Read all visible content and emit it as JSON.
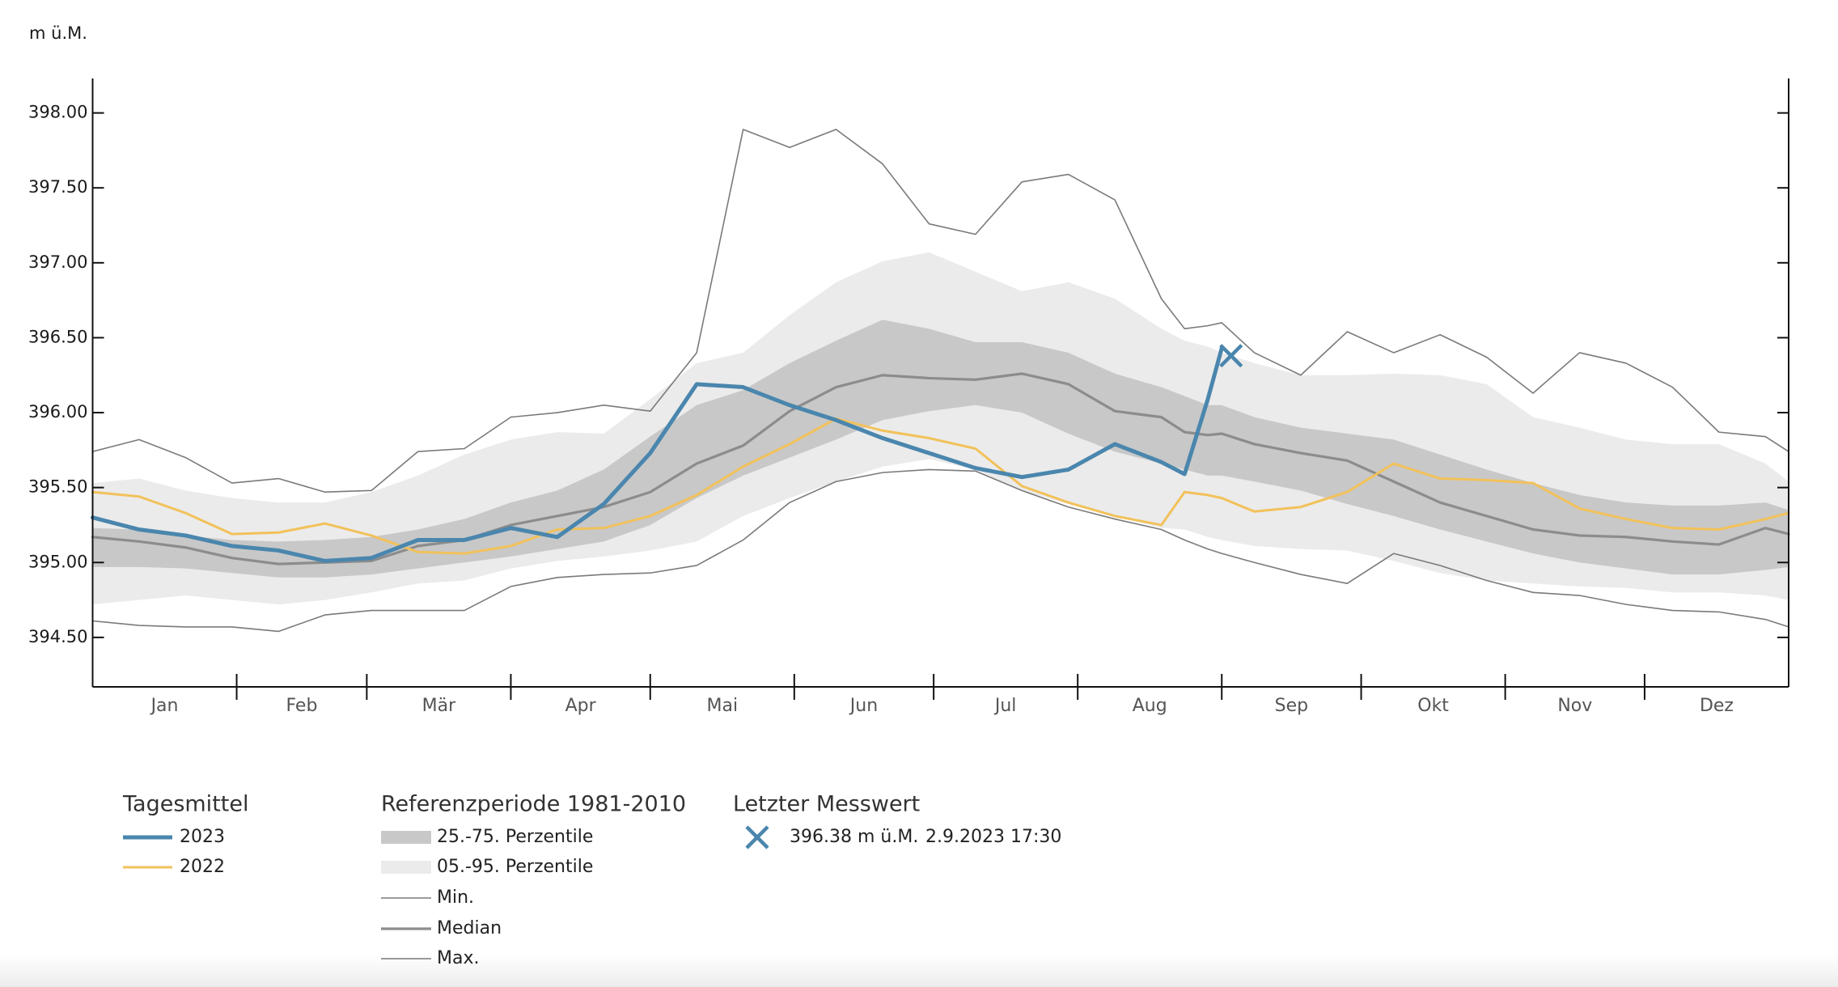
{
  "chart_data": {
    "type": "line",
    "y_label": "m ü.M.",
    "x": [
      0,
      10,
      20,
      30,
      40,
      50,
      60,
      70,
      80,
      90,
      100,
      110,
      120,
      130,
      140,
      150,
      160,
      170,
      180,
      190,
      200,
      210,
      220,
      230,
      235,
      240,
      243,
      250,
      260,
      270,
      280,
      290,
      300,
      310,
      320,
      330,
      340,
      350,
      360,
      365
    ],
    "xlim": [
      0,
      365
    ],
    "xticks": [
      {
        "value": 0,
        "label": "Jan"
      },
      {
        "value": 31,
        "label": "Feb"
      },
      {
        "value": 59,
        "label": "Mär"
      },
      {
        "value": 90,
        "label": "Apr"
      },
      {
        "value": 120,
        "label": "Mai"
      },
      {
        "value": 151,
        "label": "Jun"
      },
      {
        "value": 181,
        "label": "Jul"
      },
      {
        "value": 212,
        "label": "Aug"
      },
      {
        "value": 243,
        "label": "Sep"
      },
      {
        "value": 273,
        "label": "Okt"
      },
      {
        "value": 304,
        "label": "Nov"
      },
      {
        "value": 334,
        "label": "Dez"
      }
    ],
    "ylim": [
      394.17,
      398.23
    ],
    "yticks": [
      {
        "value": 394.5,
        "label": "394.50"
      },
      {
        "value": 395,
        "label": "395.00"
      },
      {
        "value": 395.5,
        "label": "395.50"
      },
      {
        "value": 396,
        "label": "396.00"
      },
      {
        "value": 396.5,
        "label": "396.50"
      },
      {
        "value": 397,
        "label": "397.00"
      },
      {
        "value": 397.5,
        "label": "397.50"
      },
      {
        "value": 398,
        "label": "398.00"
      }
    ],
    "series_title": "Tagesmittel",
    "series": [
      {
        "name": "2023",
        "color": "#4a86ad",
        "values": [
          395.3,
          395.22,
          395.18,
          395.11,
          395.08,
          395.01,
          395.03,
          395.15,
          395.15,
          395.23,
          395.17,
          395.39,
          395.73,
          396.19,
          396.17,
          396.05,
          395.95,
          395.83,
          395.73,
          395.63,
          395.57,
          395.62,
          395.79,
          395.67,
          395.59,
          396.09,
          396.43,
          null,
          null,
          null,
          null,
          null,
          null,
          null,
          null,
          null,
          null,
          null,
          null,
          null
        ]
      },
      {
        "name": "2022",
        "color": "#f2c15a",
        "values": [
          395.47,
          395.44,
          395.33,
          395.19,
          395.2,
          395.26,
          395.18,
          395.07,
          395.06,
          395.11,
          395.22,
          395.23,
          395.31,
          395.45,
          395.64,
          395.79,
          395.96,
          395.88,
          395.83,
          395.76,
          395.51,
          395.4,
          395.31,
          395.25,
          395.47,
          395.45,
          395.43,
          395.34,
          395.37,
          395.47,
          395.66,
          395.56,
          395.55,
          395.53,
          395.36,
          395.29,
          395.23,
          395.22,
          395.29,
          395.33
        ]
      }
    ],
    "reference": {
      "title": "Referenzperiode 1981-2010",
      "bands": [
        {
          "name": "25.-75. Perzentile",
          "color": "#c8c8c8",
          "lower": [
            394.97,
            394.97,
            394.96,
            394.93,
            394.9,
            394.9,
            394.92,
            394.96,
            395.0,
            395.04,
            395.09,
            395.14,
            395.25,
            395.43,
            395.58,
            395.7,
            395.82,
            395.95,
            396.01,
            396.05,
            396.0,
            395.86,
            395.74,
            395.66,
            395.62,
            395.58,
            395.58,
            395.54,
            395.48,
            395.39,
            395.31,
            395.22,
            395.14,
            395.06,
            395.0,
            394.96,
            394.92,
            394.92,
            394.95,
            394.97
          ],
          "upper": [
            395.23,
            395.22,
            395.18,
            395.15,
            395.14,
            395.15,
            395.17,
            395.22,
            395.29,
            395.4,
            395.48,
            395.62,
            395.84,
            396.05,
            396.15,
            396.33,
            396.48,
            396.62,
            396.56,
            396.47,
            396.47,
            396.4,
            396.26,
            396.17,
            396.11,
            396.05,
            396.05,
            395.97,
            395.9,
            395.86,
            395.82,
            395.72,
            395.62,
            395.53,
            395.45,
            395.4,
            395.38,
            395.38,
            395.4,
            395.35
          ]
        },
        {
          "name": "05.-95. Perzentile",
          "color": "#ebebeb",
          "lower": [
            394.72,
            394.75,
            394.78,
            394.75,
            394.72,
            394.75,
            394.8,
            394.86,
            394.88,
            394.96,
            395.01,
            395.04,
            395.08,
            395.14,
            395.31,
            395.43,
            395.54,
            395.64,
            395.69,
            395.62,
            395.48,
            395.39,
            395.31,
            395.23,
            395.22,
            395.17,
            395.15,
            395.11,
            395.09,
            395.08,
            395.01,
            394.93,
            394.88,
            394.86,
            394.84,
            394.83,
            394.8,
            394.8,
            394.78,
            394.75
          ],
          "upper": [
            395.53,
            395.56,
            395.48,
            395.43,
            395.4,
            395.4,
            395.47,
            395.58,
            395.72,
            395.82,
            395.87,
            395.86,
            396.09,
            396.33,
            396.4,
            396.65,
            396.87,
            397.01,
            397.07,
            396.94,
            396.81,
            396.87,
            396.76,
            396.56,
            396.48,
            396.44,
            396.4,
            396.33,
            396.25,
            396.25,
            396.26,
            396.25,
            396.19,
            395.97,
            395.9,
            395.82,
            395.79,
            395.79,
            395.66,
            395.54
          ]
        }
      ],
      "lines": [
        {
          "name": "Min.",
          "color": "#7a7a7a",
          "values": [
            394.61,
            394.58,
            394.57,
            394.57,
            394.54,
            394.65,
            394.68,
            394.68,
            394.68,
            394.84,
            394.9,
            394.92,
            394.93,
            394.98,
            395.15,
            395.4,
            395.54,
            395.6,
            395.62,
            395.61,
            395.48,
            395.37,
            395.29,
            395.22,
            395.15,
            395.09,
            395.06,
            395.0,
            394.92,
            394.86,
            395.06,
            394.98,
            394.88,
            394.8,
            394.78,
            394.72,
            394.68,
            394.67,
            394.62,
            394.57
          ]
        },
        {
          "name": "Median",
          "color": "#8c8c8c",
          "values": [
            395.17,
            395.14,
            395.1,
            395.03,
            394.99,
            395.0,
            395.01,
            395.11,
            395.15,
            395.25,
            395.31,
            395.37,
            395.47,
            395.66,
            395.78,
            396.01,
            396.17,
            396.25,
            396.23,
            396.22,
            396.26,
            396.19,
            396.01,
            395.97,
            395.87,
            395.85,
            395.86,
            395.79,
            395.73,
            395.68,
            395.54,
            395.4,
            395.31,
            395.22,
            395.18,
            395.17,
            395.14,
            395.12,
            395.23,
            395.19
          ]
        },
        {
          "name": "Max.",
          "color": "#7a7a7a",
          "values": [
            395.74,
            395.82,
            395.7,
            395.53,
            395.56,
            395.47,
            395.48,
            395.74,
            395.76,
            395.97,
            396.0,
            396.05,
            396.01,
            396.4,
            397.89,
            397.77,
            397.89,
            397.66,
            397.26,
            397.19,
            397.54,
            397.59,
            397.42,
            396.76,
            396.56,
            396.58,
            396.6,
            396.4,
            396.25,
            396.54,
            396.4,
            396.52,
            396.37,
            396.13,
            396.4,
            396.33,
            396.17,
            395.87,
            395.84,
            395.74
          ]
        }
      ]
    },
    "last_measurement": {
      "title": "Letzter Messwert",
      "x": 245,
      "value": 396.38,
      "label": "396.38 m ü.M.",
      "time": "2.9.2023 17:30",
      "color": "#4a86ad"
    }
  }
}
